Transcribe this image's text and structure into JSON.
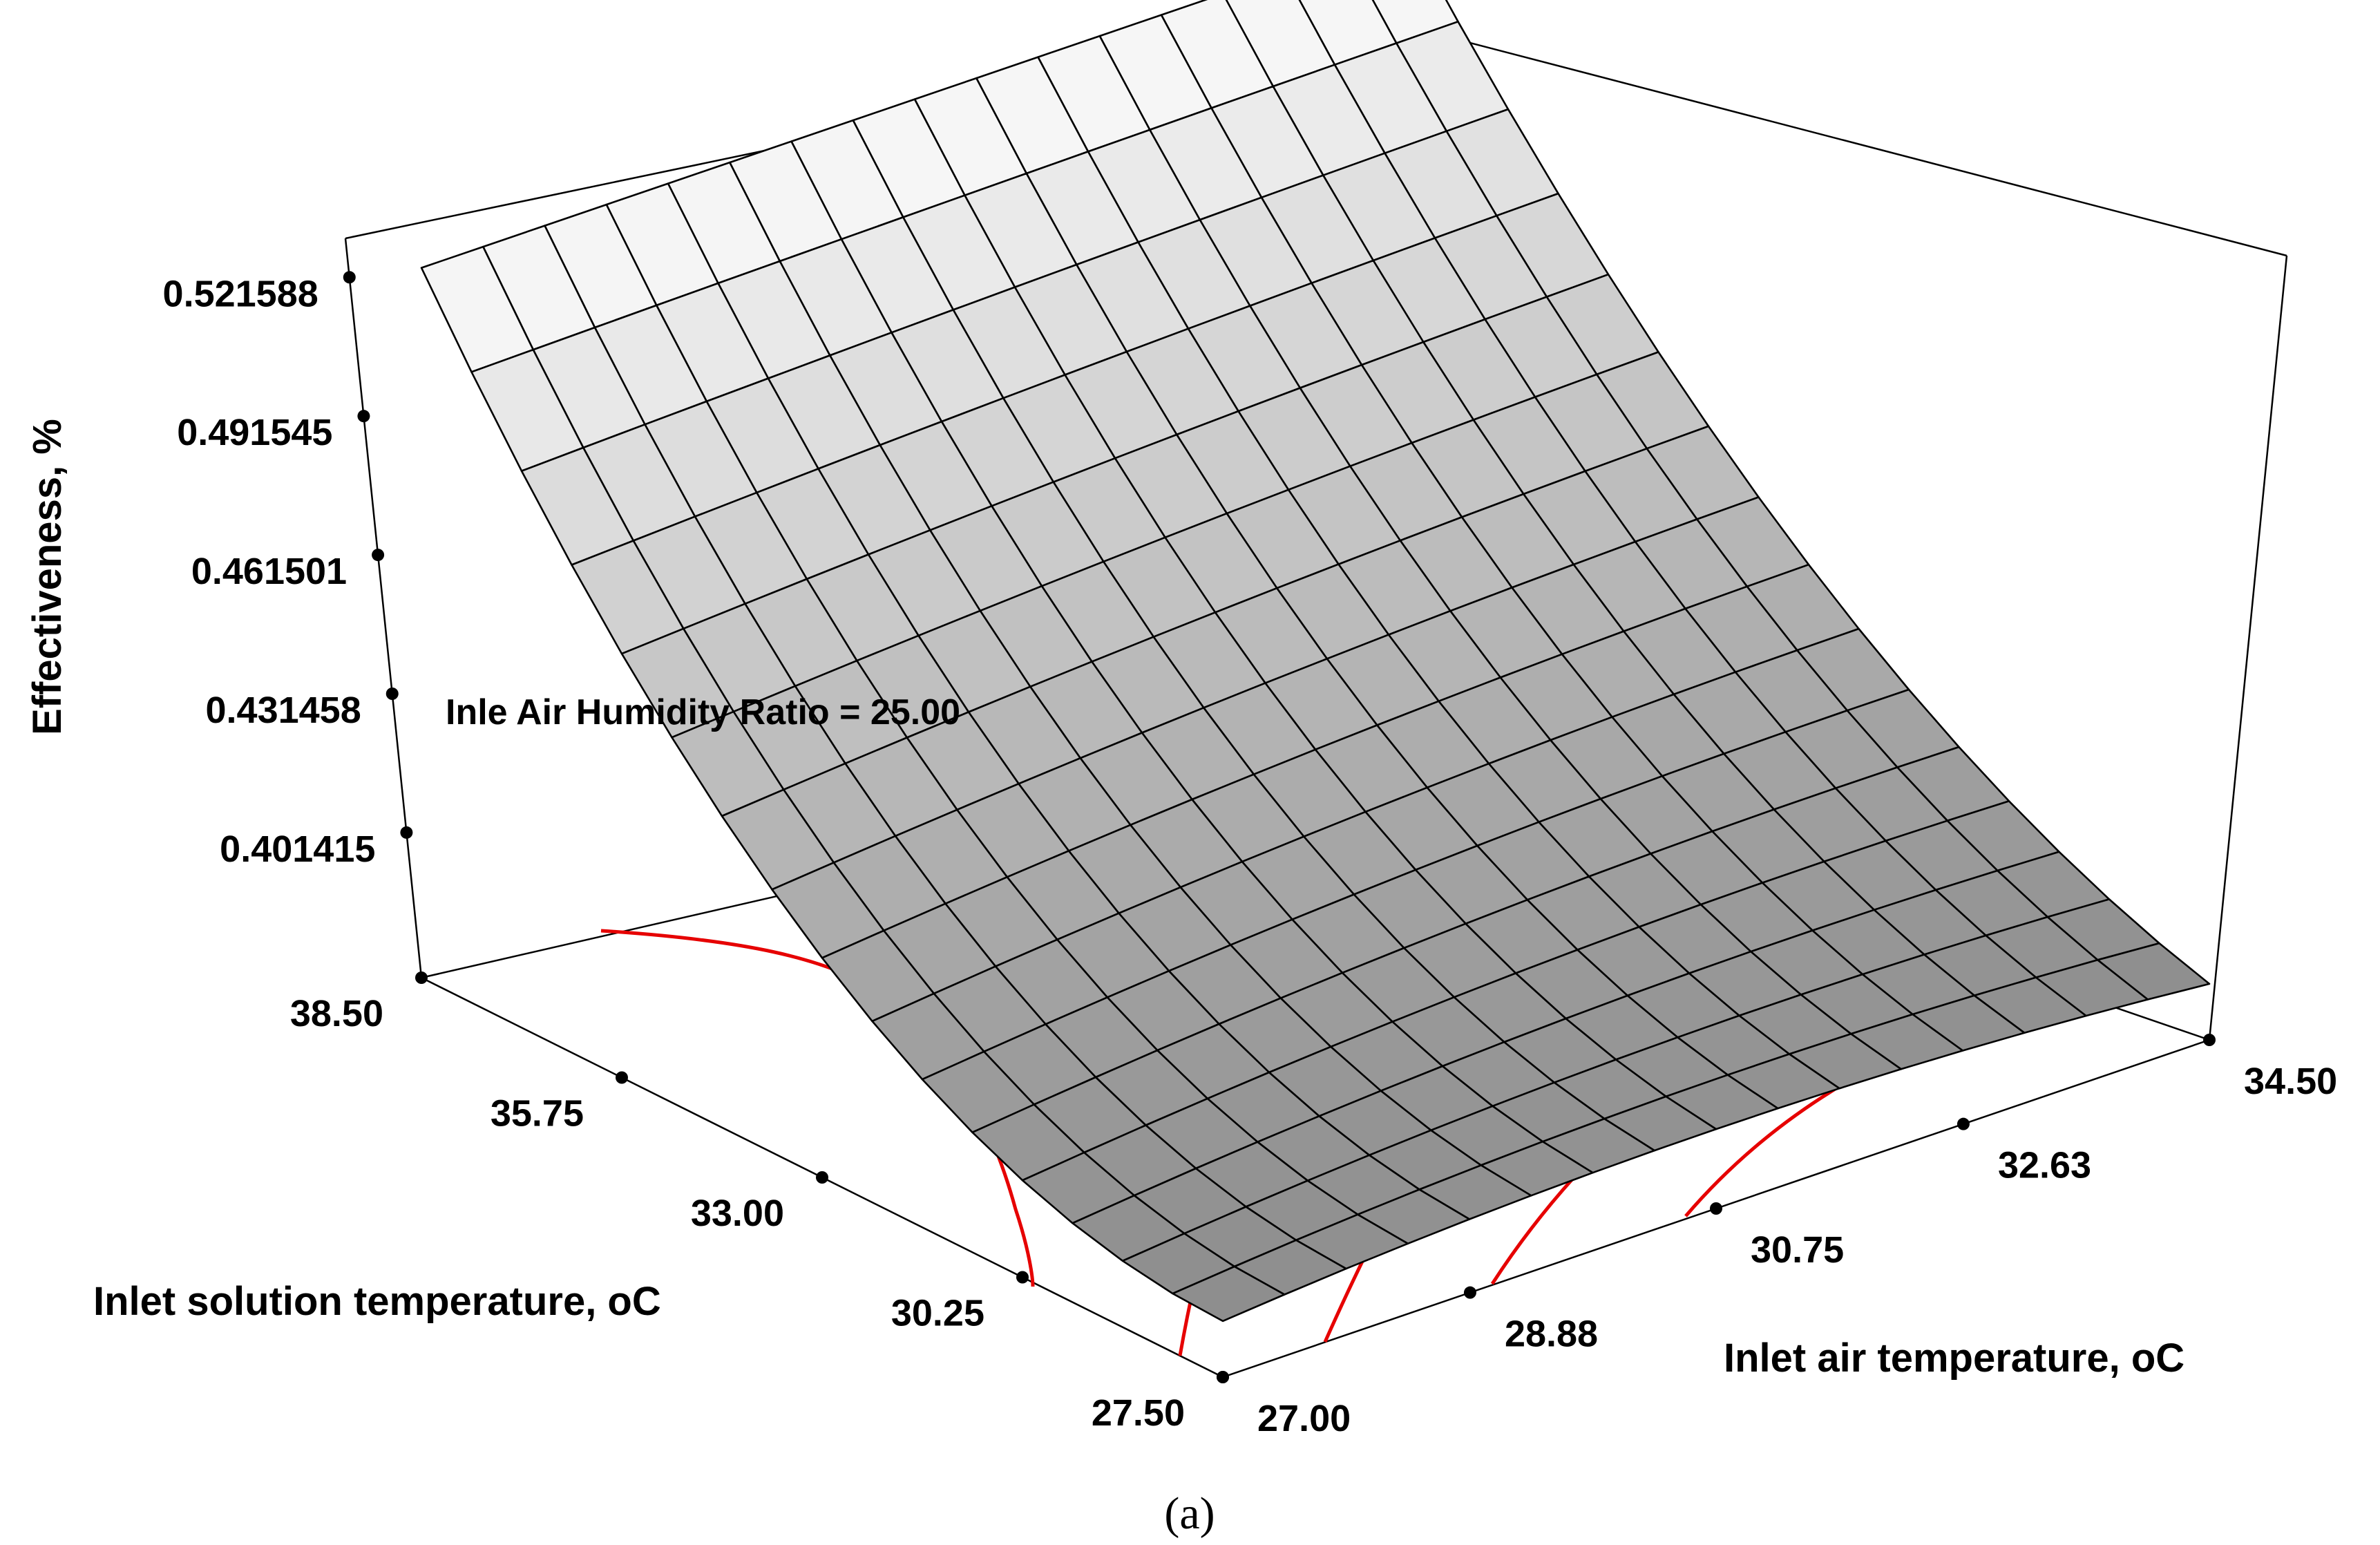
{
  "chart_data": {
    "type": "surface3d",
    "z_axis": {
      "label": "Effectiveness, %",
      "ticks": [
        "0.401415",
        "0.431458",
        "0.461501",
        "0.491545",
        "0.521588"
      ],
      "range": [
        0.37,
        0.53
      ]
    },
    "solution_axis": {
      "label": "Inlet solution temperature, oC",
      "ticks": [
        "27.50",
        "30.25",
        "33.00",
        "35.75",
        "38.50"
      ],
      "range": [
        27.5,
        38.5
      ]
    },
    "air_axis": {
      "label": "Inlet air temperature, oC",
      "ticks": [
        "27.00",
        "28.88",
        "30.75",
        "32.63",
        "34.50"
      ],
      "range": [
        27.0,
        34.5
      ]
    },
    "annotation": "Inle Air Humidity Ratio = 25.00",
    "caption": "(a)",
    "surface": {
      "grid_n": 16,
      "corner_values": {
        "solution_27_50_air_27_00": 0.382,
        "solution_38_50_air_27_00": 0.5216,
        "solution_27_50_air_34_50": 0.384,
        "solution_38_50_air_34_50": 0.5216
      }
    },
    "contours": {
      "count": 5,
      "color": "#e60000"
    },
    "colors": {
      "surface_light": "#fafafa",
      "surface_dark": "#8c8c8c",
      "contour": "#e60000",
      "mesh": "#000000"
    }
  }
}
